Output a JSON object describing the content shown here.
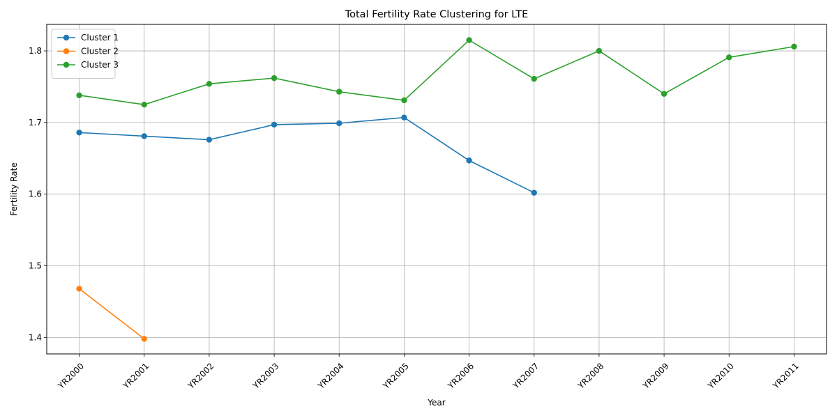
{
  "chart_data": {
    "type": "line",
    "title": "Total Fertility Rate Clustering for LTE",
    "xlabel": "Year",
    "ylabel": "Fertility Rate",
    "categories": [
      "YR2000",
      "YR2001",
      "YR2002",
      "YR2003",
      "YR2004",
      "YR2005",
      "YR2006",
      "YR2007",
      "YR2008",
      "YR2009",
      "YR2010",
      "YR2011"
    ],
    "y_ticks": [
      1.4,
      1.5,
      1.6,
      1.7,
      1.8
    ],
    "y_tick_labels": [
      "1.4",
      "1.5",
      "1.6",
      "1.7",
      "1.8"
    ],
    "ylim": [
      1.377,
      1.837
    ],
    "grid": true,
    "legend_position": "top-left",
    "series": [
      {
        "name": "Cluster 1",
        "color": "#1f77b4",
        "values": [
          1.686,
          1.681,
          1.676,
          1.697,
          1.699,
          1.707,
          1.647,
          1.602,
          null,
          null,
          null,
          null
        ]
      },
      {
        "name": "Cluster 2",
        "color": "#ff7f0e",
        "values": [
          1.468,
          1.398,
          null,
          null,
          null,
          null,
          null,
          null,
          null,
          null,
          null,
          null
        ]
      },
      {
        "name": "Cluster 3",
        "color": "#2ca02c",
        "values": [
          1.738,
          1.725,
          1.754,
          1.762,
          1.743,
          1.731,
          1.815,
          1.761,
          1.8,
          1.74,
          1.791,
          1.806
        ]
      }
    ]
  }
}
